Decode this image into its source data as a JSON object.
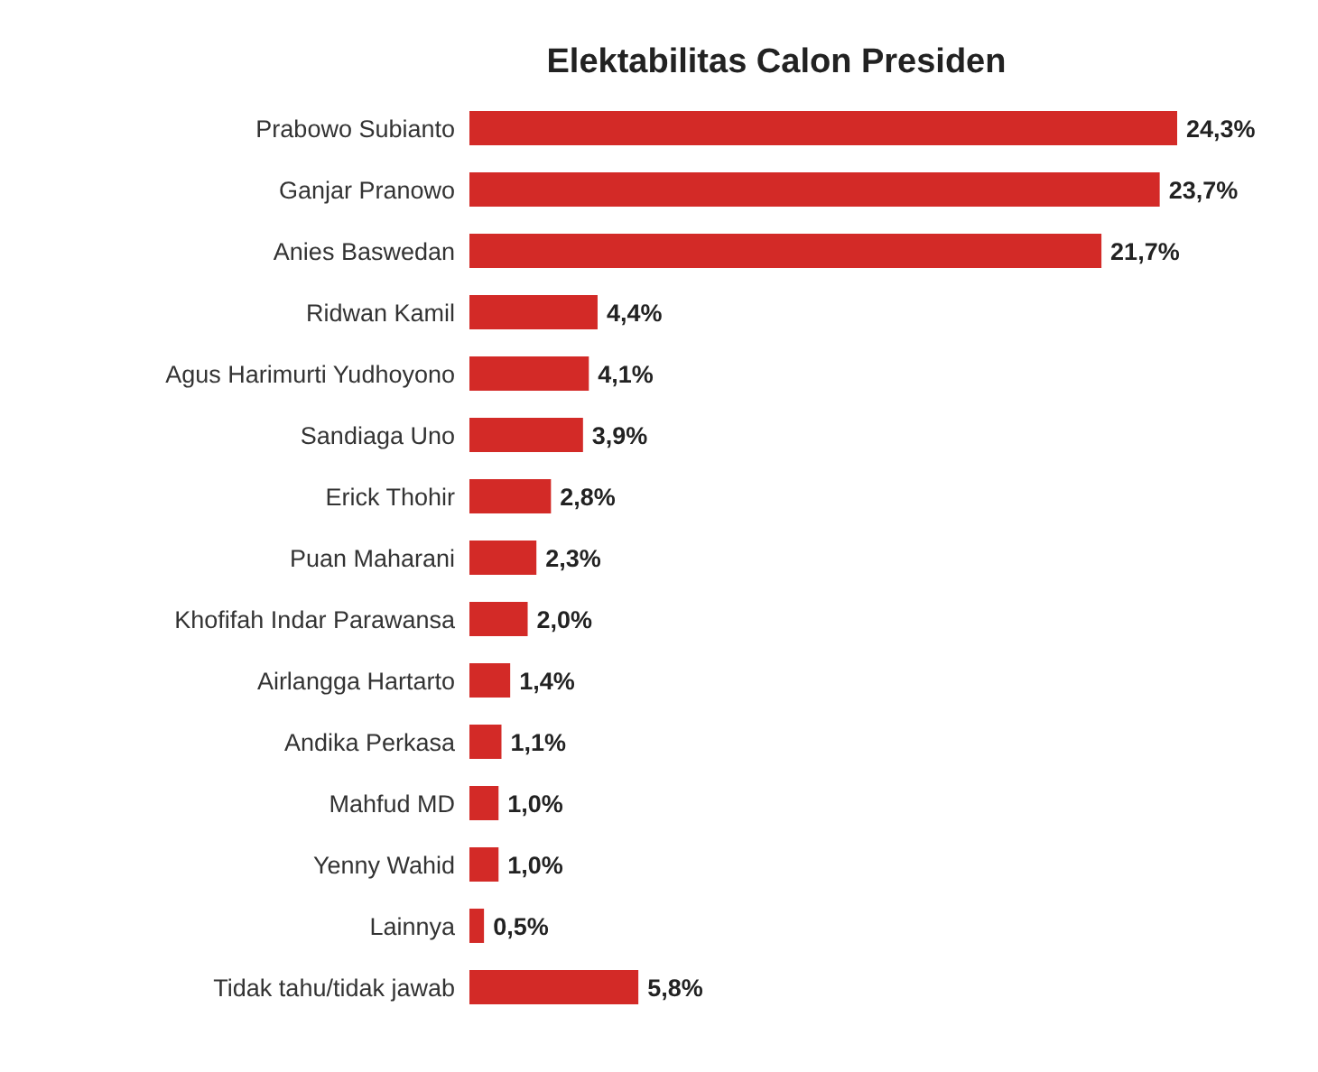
{
  "chart_data": {
    "type": "bar",
    "orientation": "horizontal",
    "title": "Elektabilitas Calon Presiden",
    "categories": [
      "Prabowo Subianto",
      "Ganjar Pranowo",
      "Anies Baswedan",
      "Ridwan Kamil",
      "Agus Harimurti Yudhoyono",
      "Sandiaga Uno",
      "Erick Thohir",
      "Puan Maharani",
      "Khofifah Indar Parawansa",
      "Airlangga Hartarto",
      "Andika Perkasa",
      "Mahfud MD",
      "Yenny Wahid",
      "Lainnya",
      "Tidak tahu/tidak jawab"
    ],
    "values": [
      24.3,
      23.7,
      21.7,
      4.4,
      4.1,
      3.9,
      2.8,
      2.3,
      2.0,
      1.4,
      1.1,
      1.0,
      1.0,
      0.5,
      5.8
    ],
    "value_labels": [
      "24,3%",
      "23,7%",
      "21,7%",
      "4,4%",
      "4,1%",
      "3,9%",
      "2,8%",
      "2,3%",
      "2,0%",
      "1,4%",
      "1,1%",
      "1,0%",
      "1,0%",
      "0,5%",
      "5,8%"
    ],
    "color": "#d32a27"
  }
}
